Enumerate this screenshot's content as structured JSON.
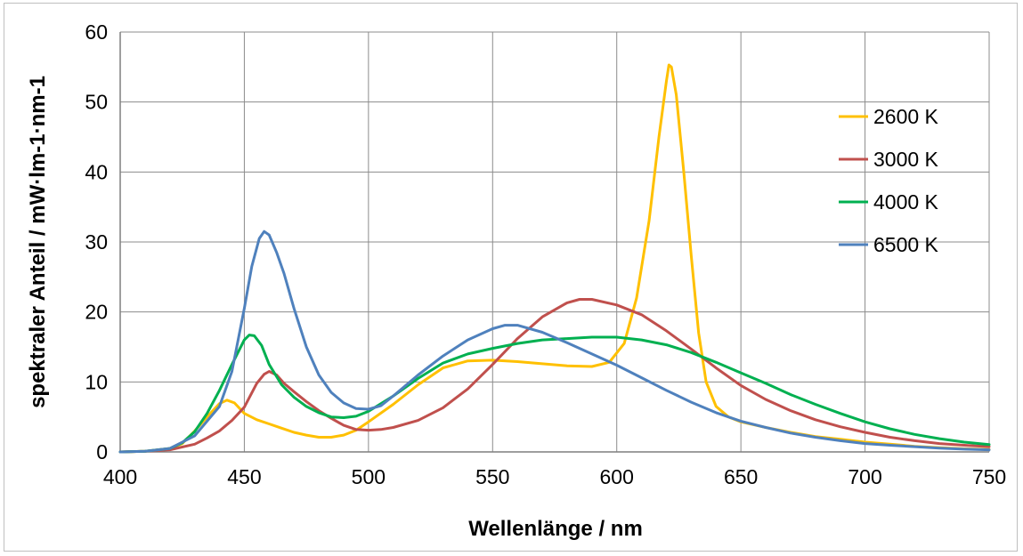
{
  "chart_data": {
    "type": "line",
    "title": "",
    "xlabel": "Wellenlänge / nm",
    "ylabel": "spektraler Anteil / mW·lm-1·nm-1",
    "xlim": [
      400,
      750
    ],
    "ylim": [
      0,
      60
    ],
    "xticks": [
      400,
      450,
      500,
      550,
      600,
      650,
      700,
      750
    ],
    "yticks": [
      0,
      10,
      20,
      30,
      40,
      50,
      60
    ],
    "grid": true,
    "legend_position": "top-right",
    "series": [
      {
        "name": "2600 K",
        "color": "#FFC000",
        "points": [
          [
            400,
            0
          ],
          [
            410,
            0.1
          ],
          [
            420,
            0.5
          ],
          [
            425,
            1.2
          ],
          [
            430,
            3
          ],
          [
            435,
            5
          ],
          [
            440,
            6.9
          ],
          [
            443,
            7.4
          ],
          [
            446,
            7.0
          ],
          [
            450,
            5.5
          ],
          [
            455,
            4.6
          ],
          [
            460,
            4.0
          ],
          [
            465,
            3.4
          ],
          [
            470,
            2.8
          ],
          [
            475,
            2.4
          ],
          [
            480,
            2.1
          ],
          [
            485,
            2.1
          ],
          [
            490,
            2.4
          ],
          [
            495,
            3.1
          ],
          [
            500,
            4.3
          ],
          [
            510,
            6.8
          ],
          [
            520,
            9.6
          ],
          [
            530,
            12.0
          ],
          [
            540,
            13.0
          ],
          [
            550,
            13.1
          ],
          [
            560,
            12.9
          ],
          [
            570,
            12.6
          ],
          [
            580,
            12.3
          ],
          [
            590,
            12.2
          ],
          [
            597,
            12.8
          ],
          [
            603,
            15.5
          ],
          [
            608,
            22
          ],
          [
            613,
            33
          ],
          [
            617,
            45
          ],
          [
            620,
            53
          ],
          [
            621,
            55.3
          ],
          [
            622,
            55
          ],
          [
            624,
            51
          ],
          [
            627,
            40
          ],
          [
            630,
            28
          ],
          [
            633,
            17
          ],
          [
            636,
            10
          ],
          [
            640,
            6.5
          ],
          [
            645,
            5.0
          ],
          [
            650,
            4.3
          ],
          [
            660,
            3.5
          ],
          [
            670,
            2.8
          ],
          [
            680,
            2.2
          ],
          [
            690,
            1.8
          ],
          [
            700,
            1.4
          ],
          [
            710,
            1.1
          ],
          [
            720,
            0.8
          ],
          [
            730,
            0.6
          ],
          [
            740,
            0.45
          ],
          [
            750,
            0.35
          ]
        ]
      },
      {
        "name": "3000 K",
        "color": "#C0504D",
        "points": [
          [
            400,
            0
          ],
          [
            410,
            0.1
          ],
          [
            420,
            0.3
          ],
          [
            430,
            1.1
          ],
          [
            435,
            2.0
          ],
          [
            440,
            3.0
          ],
          [
            445,
            4.5
          ],
          [
            450,
            6.4
          ],
          [
            455,
            9.8
          ],
          [
            458,
            11.1
          ],
          [
            460,
            11.5
          ],
          [
            463,
            11.0
          ],
          [
            466,
            9.8
          ],
          [
            470,
            8.6
          ],
          [
            475,
            7.2
          ],
          [
            480,
            5.9
          ],
          [
            485,
            4.8
          ],
          [
            490,
            3.8
          ],
          [
            495,
            3.2
          ],
          [
            500,
            3.1
          ],
          [
            505,
            3.2
          ],
          [
            510,
            3.5
          ],
          [
            520,
            4.5
          ],
          [
            530,
            6.3
          ],
          [
            540,
            9.0
          ],
          [
            550,
            12.5
          ],
          [
            560,
            16.2
          ],
          [
            570,
            19.3
          ],
          [
            580,
            21.3
          ],
          [
            585,
            21.8
          ],
          [
            590,
            21.8
          ],
          [
            600,
            21.0
          ],
          [
            610,
            19.6
          ],
          [
            620,
            17.3
          ],
          [
            630,
            14.7
          ],
          [
            640,
            12.0
          ],
          [
            650,
            9.5
          ],
          [
            660,
            7.5
          ],
          [
            670,
            5.9
          ],
          [
            680,
            4.6
          ],
          [
            690,
            3.6
          ],
          [
            700,
            2.8
          ],
          [
            710,
            2.1
          ],
          [
            720,
            1.6
          ],
          [
            730,
            1.2
          ],
          [
            740,
            0.95
          ],
          [
            750,
            0.75
          ]
        ]
      },
      {
        "name": "4000 K",
        "color": "#00B050",
        "points": [
          [
            400,
            0
          ],
          [
            410,
            0.1
          ],
          [
            420,
            0.5
          ],
          [
            425,
            1.3
          ],
          [
            430,
            2.9
          ],
          [
            435,
            5.5
          ],
          [
            440,
            8.8
          ],
          [
            445,
            12.5
          ],
          [
            450,
            16.0
          ],
          [
            452,
            16.7
          ],
          [
            454,
            16.6
          ],
          [
            457,
            15.2
          ],
          [
            460,
            12.5
          ],
          [
            465,
            9.6
          ],
          [
            470,
            7.8
          ],
          [
            475,
            6.5
          ],
          [
            480,
            5.6
          ],
          [
            485,
            5.0
          ],
          [
            490,
            4.9
          ],
          [
            495,
            5.1
          ],
          [
            500,
            5.8
          ],
          [
            510,
            8.0
          ],
          [
            520,
            10.5
          ],
          [
            530,
            12.7
          ],
          [
            540,
            14.0
          ],
          [
            550,
            14.8
          ],
          [
            560,
            15.5
          ],
          [
            570,
            16.0
          ],
          [
            580,
            16.2
          ],
          [
            590,
            16.4
          ],
          [
            600,
            16.4
          ],
          [
            610,
            16.0
          ],
          [
            620,
            15.3
          ],
          [
            630,
            14.2
          ],
          [
            640,
            12.8
          ],
          [
            650,
            11.3
          ],
          [
            660,
            9.8
          ],
          [
            670,
            8.2
          ],
          [
            680,
            6.8
          ],
          [
            690,
            5.5
          ],
          [
            700,
            4.3
          ],
          [
            710,
            3.3
          ],
          [
            720,
            2.5
          ],
          [
            730,
            1.9
          ],
          [
            740,
            1.4
          ],
          [
            750,
            1.05
          ]
        ]
      },
      {
        "name": "6500 K",
        "color": "#4F81BD",
        "points": [
          [
            400,
            0
          ],
          [
            410,
            0.1
          ],
          [
            420,
            0.5
          ],
          [
            430,
            2.3
          ],
          [
            440,
            6.5
          ],
          [
            445,
            11.5
          ],
          [
            450,
            20.5
          ],
          [
            453,
            26.5
          ],
          [
            456,
            30.5
          ],
          [
            458,
            31.5
          ],
          [
            460,
            31.0
          ],
          [
            463,
            28.5
          ],
          [
            466,
            25.5
          ],
          [
            470,
            20.5
          ],
          [
            475,
            15.0
          ],
          [
            480,
            11.0
          ],
          [
            485,
            8.5
          ],
          [
            490,
            7.0
          ],
          [
            495,
            6.2
          ],
          [
            500,
            6.1
          ],
          [
            505,
            6.6
          ],
          [
            510,
            8.0
          ],
          [
            520,
            11.0
          ],
          [
            530,
            13.7
          ],
          [
            540,
            16.0
          ],
          [
            550,
            17.6
          ],
          [
            555,
            18.1
          ],
          [
            560,
            18.1
          ],
          [
            570,
            17.1
          ],
          [
            580,
            15.6
          ],
          [
            590,
            14.0
          ],
          [
            600,
            12.4
          ],
          [
            610,
            10.6
          ],
          [
            620,
            8.8
          ],
          [
            630,
            7.1
          ],
          [
            640,
            5.6
          ],
          [
            650,
            4.4
          ],
          [
            660,
            3.5
          ],
          [
            670,
            2.7
          ],
          [
            680,
            2.1
          ],
          [
            690,
            1.6
          ],
          [
            700,
            1.2
          ],
          [
            710,
            0.95
          ],
          [
            720,
            0.75
          ],
          [
            730,
            0.55
          ],
          [
            740,
            0.4
          ],
          [
            750,
            0.3
          ]
        ]
      }
    ]
  }
}
